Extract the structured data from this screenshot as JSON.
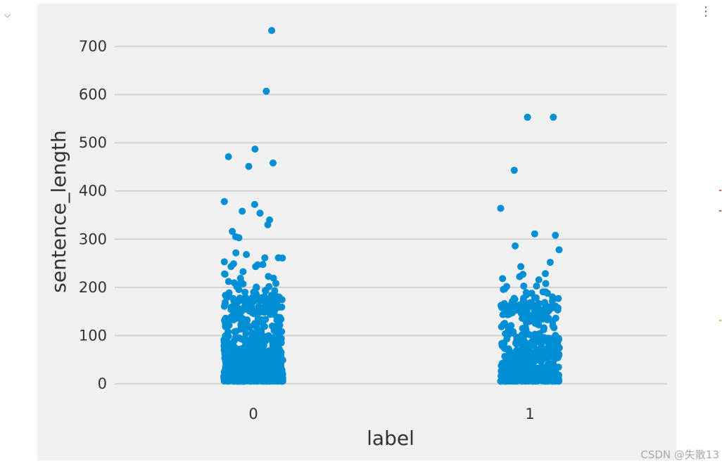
{
  "cell": {
    "collapse_glyph": "⌵",
    "menu_glyph": "⋮"
  },
  "watermark": "CSDN @失散13",
  "colors": {
    "panel_bg": "#f0f0f0",
    "grid": "#cbcbcb",
    "point": "#008fd5",
    "text": "#333333",
    "side_marks": [
      "#d9534f",
      "#d9534f",
      "#9acd32"
    ]
  },
  "chart_data": {
    "type": "scatter",
    "plot_kind": "stripplot",
    "title": "",
    "xlabel": "label",
    "ylabel": "sentence_length",
    "categories": [
      "0",
      "1"
    ],
    "ylim": [
      -20,
      760
    ],
    "yticks": [
      0,
      100,
      200,
      300,
      400,
      500,
      600,
      700
    ],
    "grid": "horizontal",
    "legend": "none",
    "n_points_estimate": [
      900,
      600
    ],
    "outliers": {
      "0": [
        733,
        607,
        487,
        471,
        458,
        451,
        378,
        372,
        358,
        354,
        340,
        330,
        316,
        305,
        303
      ],
      "1": [
        553,
        553,
        443,
        364,
        311,
        308,
        286,
        278
      ]
    }
  }
}
